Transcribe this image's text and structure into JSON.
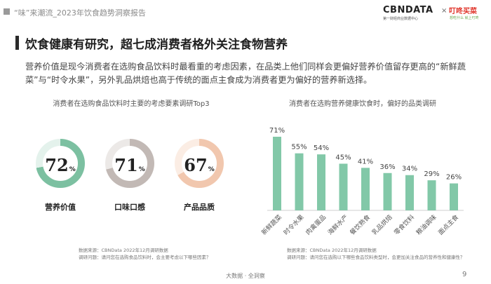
{
  "header": {
    "report_title": "“味”来潮流_2023年饮食趋势洞察报告",
    "logo_cbn": "CBNDATA",
    "logo_cbn_sub": "第一财经商业数据中心",
    "logo_separator": "×",
    "logo_partner": "叮咚买菜",
    "logo_partner_sub": "想吃什么 就上叮咚"
  },
  "main": {
    "title": "饮食健康有研究，超七成消费者格外关注食物营养",
    "description": "营养价值是现今消费者在选购食品饮料时最看重的考虑因素，在品类上他们同样会更偏好营养价值留存更高的“新鲜蔬菜”与“时令水果”，另外乳品烘焙也高于传统的面点主食成为消费者更为偏好的营养新选择。"
  },
  "left": {
    "subtitle": "消费者在选购食品饮料时主要的考虑要素调研Top3",
    "source": "数据来源：CBNData 2022年12月调研数据",
    "question": "调研问题：请问您在选购食品饮料时，会主要考虑以下哪些因素？"
  },
  "right": {
    "subtitle": "消费者在选购营养健康饮食时，偏好的品类调研",
    "source": "数据来源：CBNData 2022年12月调研数据",
    "question": "调研问题：请问您在选购以下哪些食品饮料类型时，会更加关注食品的营养性和健康性？"
  },
  "colors": {
    "accent_green": "#7cc0a1",
    "accent_grey": "#c2b9b5",
    "accent_peach": "#f1c7ae",
    "ring_bg_green": "#e4f2ec",
    "ring_bg_grey": "#ece9e7",
    "ring_bg_peach": "#fbede4",
    "bar_color": "#82c8a8"
  },
  "chart_data": [
    {
      "type": "donut",
      "title": "消费者在选购食品饮料时主要的考虑要素调研Top3",
      "unit": "%",
      "categories": [
        "营养价值",
        "口味口感",
        "产品品质"
      ],
      "values": [
        72,
        71,
        67
      ],
      "value_labels": [
        "72",
        "71",
        "67"
      ],
      "colors": [
        "#7cc0a1",
        "#c2b9b5",
        "#f1c7ae"
      ]
    },
    {
      "type": "bar",
      "title": "消费者在选购营养健康饮食时，偏好的品类调研",
      "categories": [
        "新鲜蔬菜",
        "时令水果",
        "肉禽蛋品",
        "海鲜水产",
        "餐饮熟食",
        "乳品烘焙",
        "零食饮料",
        "粮油调味",
        "面点主食"
      ],
      "values": [
        71,
        55,
        54,
        45,
        41,
        36,
        34,
        29,
        26
      ],
      "value_labels": [
        "71%",
        "55%",
        "54%",
        "45%",
        "41%",
        "36%",
        "34%",
        "29%",
        "26%"
      ],
      "ylim": [
        0,
        80
      ],
      "grid": false,
      "legend": "none"
    }
  ],
  "footer": {
    "brand": "大数据 · 全洞察",
    "page_number": "9"
  }
}
